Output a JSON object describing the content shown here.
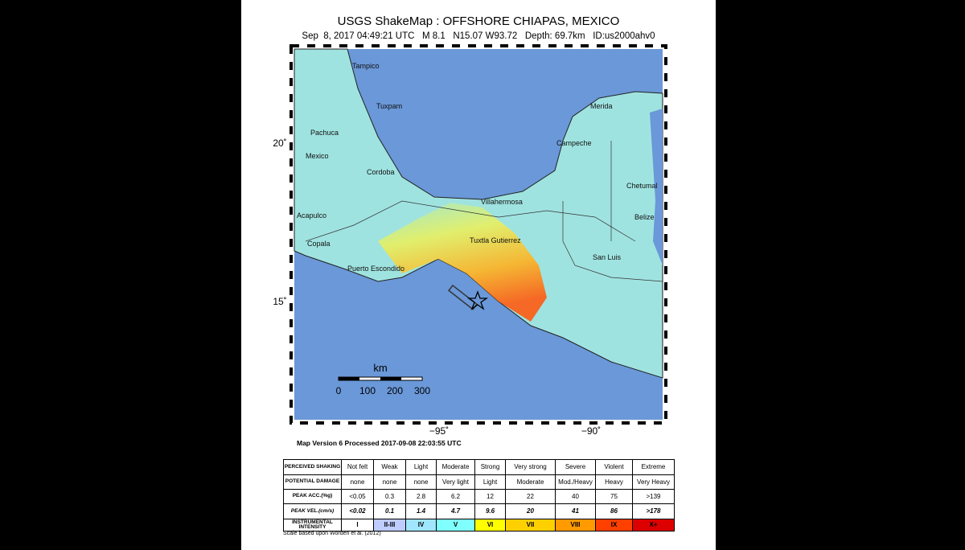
{
  "header": {
    "title": "USGS ShakeMap : OFFSHORE CHIAPAS, MEXICO",
    "subtitle": "Sep  8, 2017 04:49:21 UTC   M 8.1   N15.07 W93.72   Depth: 69.7km   ID:us2000ahv0"
  },
  "map": {
    "latitude_labels": [
      "20˚",
      "15˚"
    ],
    "longitude_labels": [
      "−95˚",
      "−90˚"
    ],
    "cities": [
      "Tampico",
      "Tuxpam",
      "Pachuca",
      "Mexico",
      "Cordoba",
      "Merida",
      "Campeche",
      "Chetumal",
      "Villahermosa",
      "Belize",
      "Acapulco",
      "Copala",
      "Tuxtla Gutierrez",
      "San Luis",
      "Puerto Escondido"
    ],
    "scale_bar": {
      "unit": "km",
      "ticks": [
        "0",
        "100",
        "200",
        "300"
      ]
    }
  },
  "version_note": "Map Version 6 Processed 2017-09-08 22:03:55 UTC",
  "table": {
    "rows": [
      [
        "PERCEIVED SHAKING",
        "Not felt",
        "Weak",
        "Light",
        "Moderate",
        "Strong",
        "Very strong",
        "Severe",
        "Violent",
        "Extreme"
      ],
      [
        "POTENTIAL DAMAGE",
        "none",
        "none",
        "none",
        "Very light",
        "Light",
        "Moderate",
        "Mod./Heavy",
        "Heavy",
        "Very Heavy"
      ],
      [
        "PEAK ACC.(%g)",
        "<0.05",
        "0.3",
        "2.8",
        "6.2",
        "12",
        "22",
        "40",
        "75",
        ">139"
      ],
      [
        "PEAK VEL.(cm/s)",
        "<0.02",
        "0.1",
        "1.4",
        "4.7",
        "9.6",
        "20",
        "41",
        "86",
        ">178"
      ],
      [
        "INSTRUMENTAL INTENSITY",
        "I",
        "II-III",
        "IV",
        "V",
        "VI",
        "VII",
        "VIII",
        "IX",
        "X+"
      ]
    ]
  },
  "footnote": "Scale based upon Worden et al. (2012)"
}
